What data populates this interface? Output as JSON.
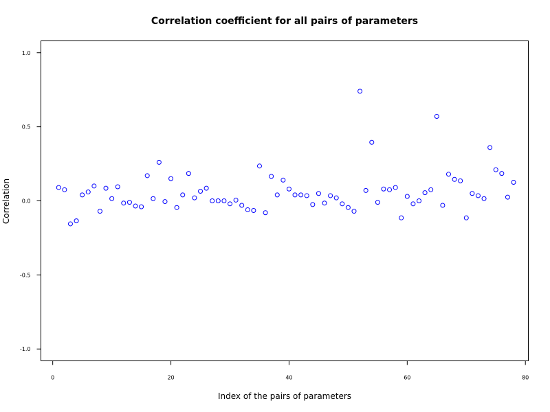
{
  "chart_data": {
    "type": "scatter",
    "title": "Correlation coefficient for all pairs of parameters",
    "xlabel": "Index of the pairs of parameters",
    "ylabel": "Correlation",
    "xlim": [
      -2,
      80.5
    ],
    "ylim": [
      -1.08,
      1.08
    ],
    "xticks": [
      0,
      20,
      40,
      60,
      80
    ],
    "yticks": [
      -1.0,
      -0.5,
      0.0,
      0.5,
      1.0
    ],
    "xtick_labels": [
      "0",
      "20",
      "40",
      "60",
      "80"
    ],
    "ytick_labels": [
      "-1.0",
      "-0.5",
      "0.0",
      "0.5",
      "1.0"
    ],
    "grid": false,
    "marker": "open-circle",
    "marker_color": "#0000ff",
    "x": [
      1,
      2,
      3,
      4,
      5,
      6,
      7,
      8,
      9,
      10,
      11,
      12,
      13,
      14,
      15,
      16,
      17,
      18,
      19,
      20,
      21,
      22,
      23,
      24,
      25,
      26,
      27,
      28,
      29,
      30,
      31,
      32,
      33,
      34,
      35,
      36,
      37,
      38,
      39,
      40,
      41,
      42,
      43,
      44,
      45,
      46,
      47,
      48,
      49,
      50,
      51,
      52,
      53,
      54,
      55,
      56,
      57,
      58,
      59,
      60,
      61,
      62,
      63,
      64,
      65,
      66,
      67,
      68,
      69,
      70,
      71,
      72,
      73,
      74,
      75,
      76,
      77,
      78
    ],
    "y": [
      0.09,
      0.075,
      -0.155,
      -0.135,
      0.04,
      0.06,
      0.1,
      -0.07,
      0.085,
      0.015,
      0.095,
      -0.015,
      -0.01,
      -0.035,
      -0.04,
      0.17,
      0.015,
      0.26,
      -0.005,
      0.15,
      -0.045,
      0.04,
      0.185,
      0.02,
      0.065,
      0.085,
      0.0,
      0.0,
      0.0,
      -0.02,
      0.005,
      -0.03,
      -0.06,
      -0.065,
      0.235,
      -0.08,
      0.165,
      0.04,
      0.14,
      0.08,
      0.04,
      0.04,
      0.035,
      -0.025,
      0.05,
      -0.015,
      0.035,
      0.02,
      -0.02,
      -0.045,
      -0.07,
      0.74,
      0.07,
      0.395,
      -0.01,
      0.08,
      0.075,
      0.09,
      -0.115,
      0.03,
      -0.02,
      0.0,
      0.055,
      0.075,
      0.57,
      -0.03,
      0.18,
      0.145,
      0.135,
      -0.115,
      0.05,
      0.035,
      0.015,
      0.36,
      0.21,
      0.185,
      0.025,
      0.125
    ]
  }
}
